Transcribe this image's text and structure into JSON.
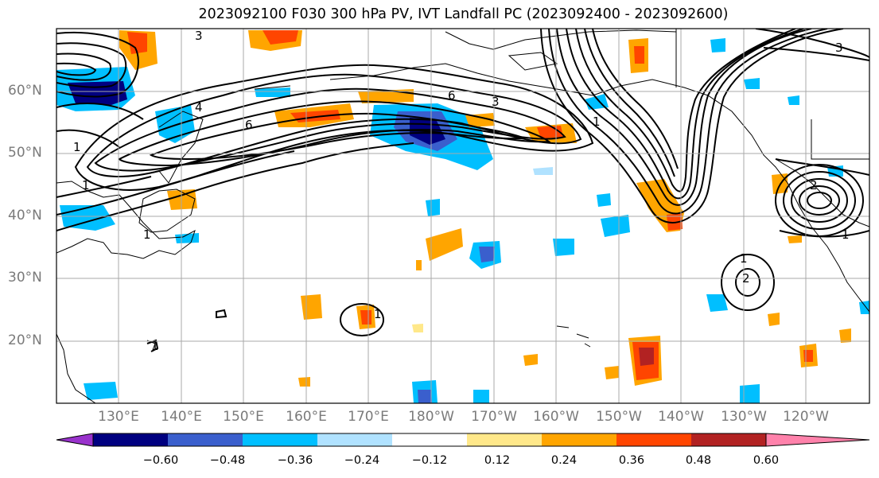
{
  "title": "2023092100 F030 300 hPa PV, IVT Landfall PC (2023092400 - 2023092600)",
  "lat_labels": [
    "60°N",
    "50°N",
    "40°N",
    "30°N",
    "20°N"
  ],
  "lon_labels": [
    "130°E",
    "140°E",
    "150°E",
    "160°E",
    "170°E",
    "180°W",
    "170°W",
    "160°W",
    "150°W",
    "140°W",
    "130°W",
    "120°W"
  ],
  "colorbar": {
    "tick_labels": [
      "−0.60",
      "−0.48",
      "−0.36",
      "−0.24",
      "−0.12",
      "0.12",
      "0.24",
      "0.36",
      "0.48",
      "0.60"
    ],
    "colors": [
      "#9932cc",
      "#000080",
      "#3a5fcd",
      "#00bfff",
      "#b0e2ff",
      "#ffffff",
      "#ffe88a",
      "#ffa500",
      "#ff4500",
      "#b22222",
      "#ff82ab"
    ]
  },
  "contour_labels": [
    "3",
    "4",
    "6",
    "1",
    "1",
    "6",
    "3",
    "1",
    "1",
    "2",
    "1",
    "3",
    "1",
    "1",
    "2",
    "1"
  ]
}
